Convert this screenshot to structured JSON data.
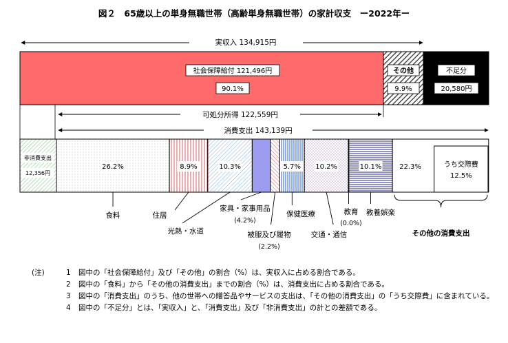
{
  "title": "図２　65歳以上の単身無職世帯（高齢単身無職世帯）の家計収支　ー2022年ー",
  "chart_data": {
    "type": "bar",
    "income_bar": {
      "label": "実収入",
      "value_label": "134,915円",
      "segments": [
        {
          "key": "social_security",
          "name": "社会保障給付",
          "amount_label": "121,496円",
          "share_label": "90.1%",
          "share": 90.1,
          "color": "#ff6b6b"
        },
        {
          "key": "other",
          "name": "その他",
          "share_label": "9.9%",
          "share": 9.9,
          "pattern": "hatch-dark"
        },
        {
          "key": "deficit",
          "name": "不足分",
          "amount_label": "20,580円",
          "color": "#000000"
        }
      ]
    },
    "disposable_income": {
      "label": "可処分所得",
      "value_label": "122,559円"
    },
    "consumption_total": {
      "label": "消費支出",
      "value_label": "143,139円"
    },
    "non_consumption": {
      "name": "非消費支出",
      "amount_label": "12,356円",
      "pattern": "hatch-green"
    },
    "expenditure_segments": [
      {
        "key": "food",
        "name": "食料",
        "share": 26.2,
        "share_label": "26.2%",
        "pattern": "dots"
      },
      {
        "key": "housing",
        "name": "住居",
        "share": 8.9,
        "share_label": "8.9%",
        "pattern": "vlines-red"
      },
      {
        "key": "utilities",
        "name": "光熱・水道",
        "share": 10.3,
        "share_label": "10.3%",
        "pattern": "diag-blue"
      },
      {
        "key": "furniture",
        "name": "家具・家事用品",
        "share": 4.2,
        "share_label": "(4.2%)",
        "color": "#9c9cf0"
      },
      {
        "key": "clothing",
        "name": "被服及び履物",
        "share": 2.2,
        "share_label": "(2.2%)",
        "pattern": "diag-red"
      },
      {
        "key": "medical",
        "name": "保健医療",
        "share": 5.7,
        "share_label": "5.7%",
        "pattern": "vlines-blue"
      },
      {
        "key": "transport",
        "name": "交通・通信",
        "share": 10.2,
        "share_label": "10.2%",
        "pattern": "dots-purple"
      },
      {
        "key": "education",
        "name": "教育",
        "share": 0.0,
        "share_label": "(0.0%)",
        "color": "#ffffff"
      },
      {
        "key": "recreation",
        "name": "教養娯楽",
        "share": 10.1,
        "share_label": "10.1%",
        "pattern": "hlines-navy"
      },
      {
        "key": "other_consumption",
        "name": "その他の消費支出",
        "share": 22.3,
        "share_label": "22.3%",
        "color": "#ffffff",
        "sub": {
          "name": "うち交際費",
          "share_label": "12.5%",
          "share": 12.5
        }
      }
    ]
  },
  "notes": {
    "head": "(注)",
    "items": [
      {
        "num": "1",
        "text": "図中の「社会保障給付」及び「その他」の割合（%）は、実収入に占める割合である。"
      },
      {
        "num": "2",
        "text": "図中の「食料」から「その他の消費支出」までの割合（%）は、消費支出に占める割合である。"
      },
      {
        "num": "3",
        "text": "図中の「消費支出」のうち、他の世帯への贈答品やサービスの支出は、「その他の消費支出」の「うち交際費」に含まれている。"
      },
      {
        "num": "4",
        "text": "図中の「不足分」とは、「実収入」と、「消費支出」及び「非消費支出」の計との差額である。"
      }
    ]
  }
}
